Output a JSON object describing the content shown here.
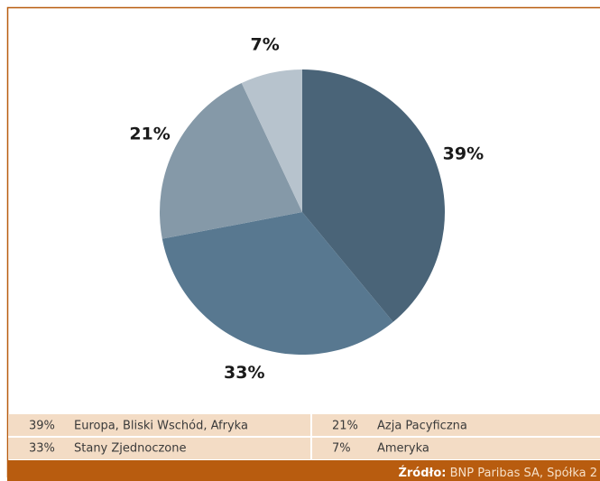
{
  "chart_data": {
    "type": "pie",
    "categories": [
      "Europa, Bliski Wschód, Afryka",
      "Stany Zjednoczone",
      "Azja Pacyficzna",
      "Ameryka"
    ],
    "values": [
      39,
      33,
      21,
      7
    ],
    "value_labels": [
      "39%",
      "33%",
      "21%",
      "7%"
    ],
    "colors": [
      "#4a6478",
      "#587890",
      "#8599a8",
      "#b7c3cd"
    ],
    "source_label": "Źródło:",
    "source": "BNP Paribas SA, Spółka 2"
  }
}
